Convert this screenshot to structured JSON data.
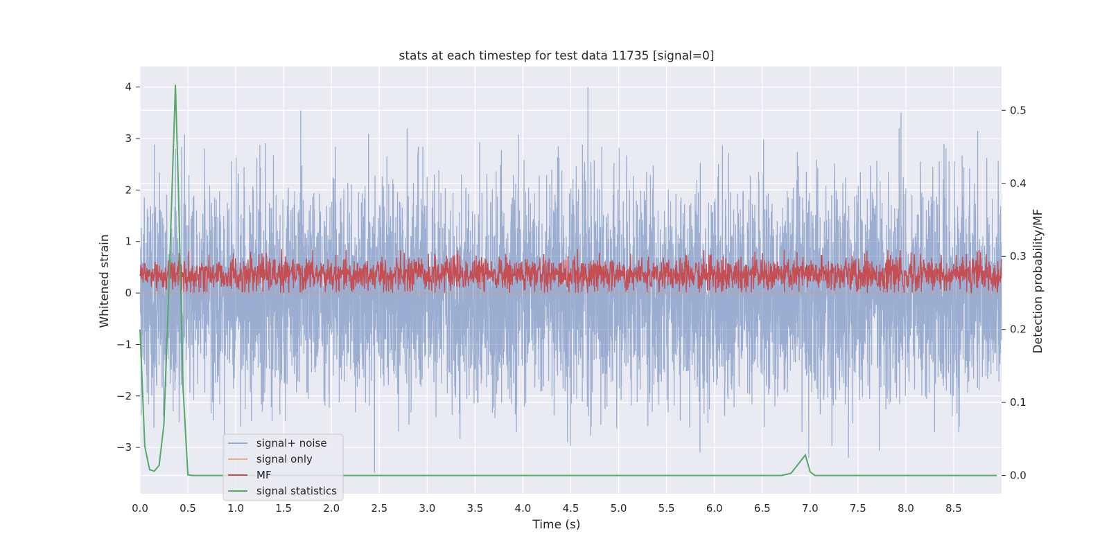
{
  "chart_data": {
    "type": "line",
    "title": "stats at each timestep for test data 11735 [signal=0]",
    "xlabel": "Time (s)",
    "ylabel_left": "Whitened strain",
    "ylabel_right": "Detection probability/MF",
    "xlim": [
      0.0,
      9.0
    ],
    "ylim_left": [
      -3.9,
      4.4
    ],
    "ylim_right": [
      -0.025,
      0.56
    ],
    "x_ticks": [
      "0.0",
      "0.5",
      "1.0",
      "1.5",
      "2.0",
      "2.5",
      "3.0",
      "3.5",
      "4.0",
      "4.5",
      "5.0",
      "5.5",
      "6.0",
      "6.5",
      "7.0",
      "7.5",
      "8.0",
      "8.5"
    ],
    "y_ticks_left": [
      "4",
      "3",
      "2",
      "1",
      "0",
      "−1",
      "−2",
      "−3"
    ],
    "y_ticks_right": [
      "0.5",
      "0.4",
      "0.3",
      "0.2",
      "0.1",
      "0.0"
    ],
    "grid": true,
    "legend_position": "lower-left",
    "legend": [
      "signal+ noise",
      "signal only",
      "MF",
      "signal statistics"
    ],
    "colors": {
      "signal_noise": "#4c72b0",
      "signal_only": "#dd8452",
      "mf": "#c44e52",
      "signal_statistics": "#55a868",
      "plot_background": "#eaeaf2",
      "grid": "#ffffff"
    },
    "series": [
      {
        "name": "signal+ noise",
        "axis": "left",
        "description_range": [
          -3.5,
          4.0
        ],
        "peaks": [
          [
            0.37,
            2.8
          ],
          [
            1.68,
            3.55
          ],
          [
            4.68,
            4.0
          ],
          [
            7.95,
            3.5
          ],
          [
            8.75,
            3.15
          ],
          [
            2.45,
            -3.5
          ],
          [
            5.85,
            -3.1
          ],
          [
            7.4,
            -3.2
          ]
        ]
      },
      {
        "name": "signal only",
        "axis": "left",
        "x": [
          0.0,
          9.0
        ],
        "y": [
          0.0,
          0.0
        ]
      },
      {
        "name": "MF",
        "axis": "right",
        "range": [
          0.25,
          0.31
        ]
      },
      {
        "name": "signal statistics",
        "axis": "right",
        "x": [
          0.0,
          0.05,
          0.1,
          0.15,
          0.2,
          0.25,
          0.3,
          0.37,
          0.4,
          0.45,
          0.5,
          0.55,
          6.7,
          6.8,
          6.95,
          7.0,
          7.05,
          7.1,
          8.95
        ],
        "y": [
          0.2,
          0.04,
          0.008,
          0.006,
          0.014,
          0.07,
          0.25,
          0.535,
          0.4,
          0.12,
          0.001,
          0.0,
          0.0,
          0.003,
          0.028,
          0.005,
          0.0,
          0.0,
          0.0
        ]
      }
    ]
  }
}
